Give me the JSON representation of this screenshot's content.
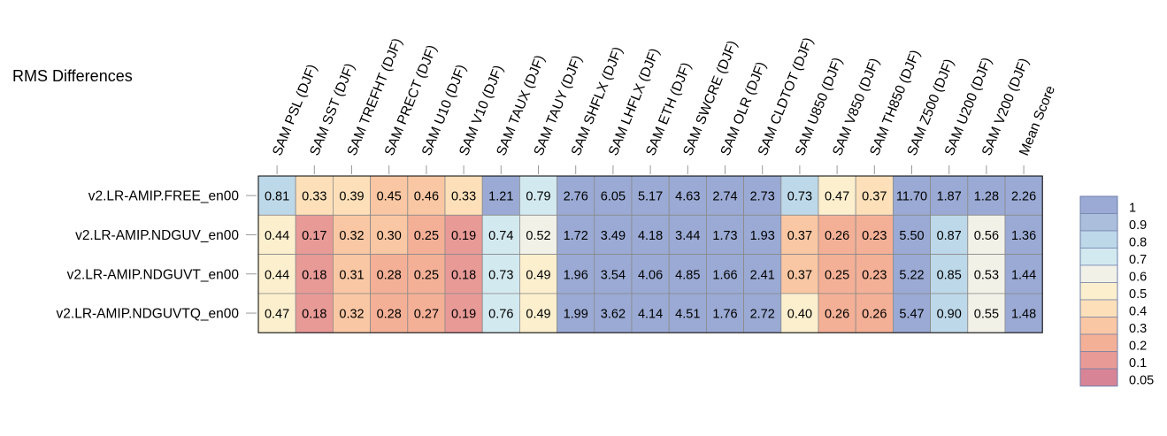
{
  "chart_data": {
    "type": "heatmap",
    "title": "RMS Differences",
    "columns": [
      "SAM PSL (DJF)",
      "SAM SST (DJF)",
      "SAM TREFHT (DJF)",
      "SAM PRECT (DJF)",
      "SAM U10 (DJF)",
      "SAM V10 (DJF)",
      "SAM TAUX (DJF)",
      "SAM TAUY (DJF)",
      "SAM SHFLX (DJF)",
      "SAM LHFLX (DJF)",
      "SAM ETH (DJF)",
      "SAM SWCRE (DJF)",
      "SAM OLR (DJF)",
      "SAM CLDTOT (DJF)",
      "SAM U850 (DJF)",
      "SAM V850 (DJF)",
      "SAM TH850 (DJF)",
      "SAM Z500 (DJF)",
      "SAM U200 (DJF)",
      "SAM V200 (DJF)",
      "Mean Score"
    ],
    "rows": [
      "v2.LR-AMIP.FREE_en00",
      "v2.LR-AMIP.NDGUV_en00",
      "v2.LR-AMIP.NDGUVT_en00",
      "v2.LR-AMIP.NDGUVTQ_en00"
    ],
    "values": [
      [
        "0.81",
        "0.33",
        "0.39",
        "0.45",
        "0.46",
        "0.33",
        "1.21",
        "0.79",
        "2.76",
        "6.05",
        "5.17",
        "4.63",
        "2.74",
        "2.73",
        "0.73",
        "0.47",
        "0.37",
        "11.70",
        "1.87",
        "1.28",
        "2.26"
      ],
      [
        "0.44",
        "0.17",
        "0.32",
        "0.30",
        "0.25",
        "0.19",
        "0.74",
        "0.52",
        "1.72",
        "3.49",
        "4.18",
        "3.44",
        "1.73",
        "1.93",
        "0.37",
        "0.26",
        "0.23",
        "5.50",
        "0.87",
        "0.56",
        "1.36"
      ],
      [
        "0.44",
        "0.18",
        "0.31",
        "0.28",
        "0.25",
        "0.18",
        "0.73",
        "0.49",
        "1.96",
        "3.54",
        "4.06",
        "4.85",
        "1.66",
        "2.41",
        "0.37",
        "0.25",
        "0.23",
        "5.22",
        "0.85",
        "0.53",
        "1.44"
      ],
      [
        "0.47",
        "0.18",
        "0.32",
        "0.28",
        "0.27",
        "0.19",
        "0.76",
        "0.49",
        "1.99",
        "3.62",
        "4.14",
        "4.51",
        "1.76",
        "2.72",
        "0.40",
        "0.26",
        "0.26",
        "5.47",
        "0.90",
        "0.55",
        "1.48"
      ]
    ],
    "colorbar": {
      "labels": [
        "1",
        "0.9",
        "0.8",
        "0.7",
        "0.6",
        "0.5",
        "0.4",
        "0.3",
        "0.2",
        "0.1",
        "0.05"
      ],
      "colors": [
        "#9aaad4",
        "#abbfdd",
        "#bdd8e8",
        "#d3e9f0",
        "#f1f1e8",
        "#fbefce",
        "#fde0b9",
        "#f9c7a3",
        "#f4b096",
        "#e89a97",
        "#d78496"
      ]
    }
  }
}
